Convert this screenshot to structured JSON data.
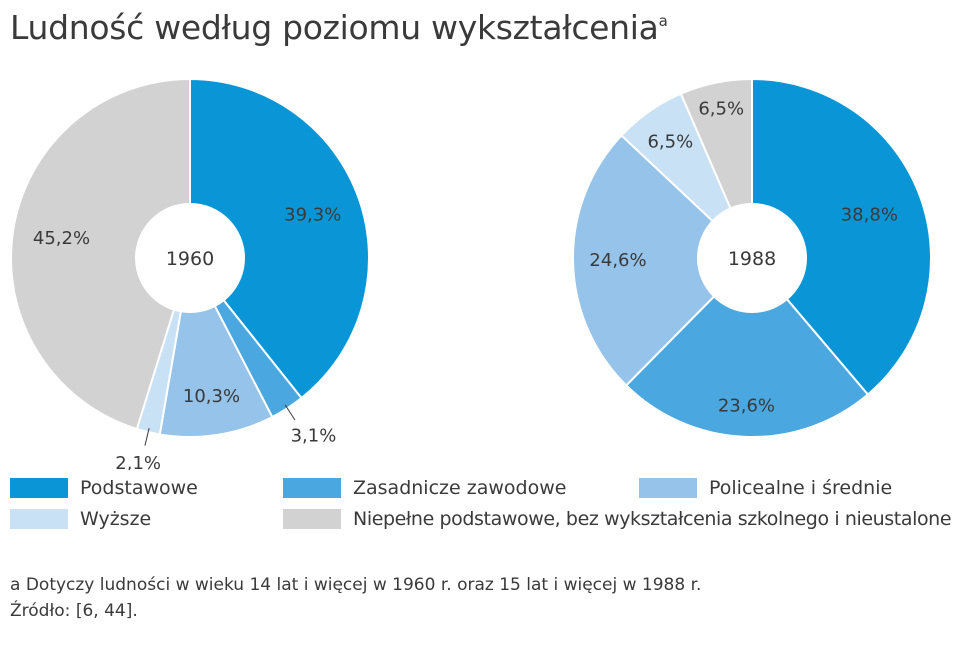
{
  "title": "Ludność według poziomu wykształcenia",
  "title_sup": "a",
  "colors": {
    "Podstawowe": "#0a96d6",
    "Zasadnicze zawodowe": "#4aa7df",
    "Policealne i średnie": "#95c3e9",
    "Wyższe": "#c9e1f5",
    "Niepełne podstawowe, bez wykształcenia szkolnego i nieustalone": "#d2d2d2"
  },
  "chart_data": [
    {
      "type": "pie",
      "center_label": "1960",
      "categories": [
        "Podstawowe",
        "Zasadnicze zawodowe",
        "Policealne i średnie",
        "Wyższe",
        "Niepełne podstawowe, bez wykształcenia szkolnego i nieustalone"
      ],
      "values": [
        39.3,
        3.1,
        10.3,
        2.1,
        45.2
      ],
      "labels": [
        "39,3%",
        "3,1%",
        "10,3%",
        "2,1%",
        "45,2%"
      ]
    },
    {
      "type": "pie",
      "center_label": "1988",
      "categories": [
        "Podstawowe",
        "Zasadnicze zawodowe",
        "Policealne i średnie",
        "Wyższe",
        "Niepełne podstawowe, bez wykształcenia szkolnego i nieustalone"
      ],
      "values": [
        38.8,
        23.6,
        24.6,
        6.5,
        6.5
      ],
      "labels": [
        "38,8%",
        "23,6%",
        "24,6%",
        "6,5%",
        "6,5%"
      ]
    }
  ],
  "legend": [
    "Podstawowe",
    "Zasadnicze zawodowe",
    "Policealne i średnie",
    "Wyższe",
    "Niepełne podstawowe, bez wykształcenia szkolnego i nieustalone"
  ],
  "footnote": "a Dotyczy ludności w wieku 14 lat i więcej w 1960 r. oraz 15 lat i więcej w 1988 r.",
  "source": "Źródło: [6, 44]."
}
